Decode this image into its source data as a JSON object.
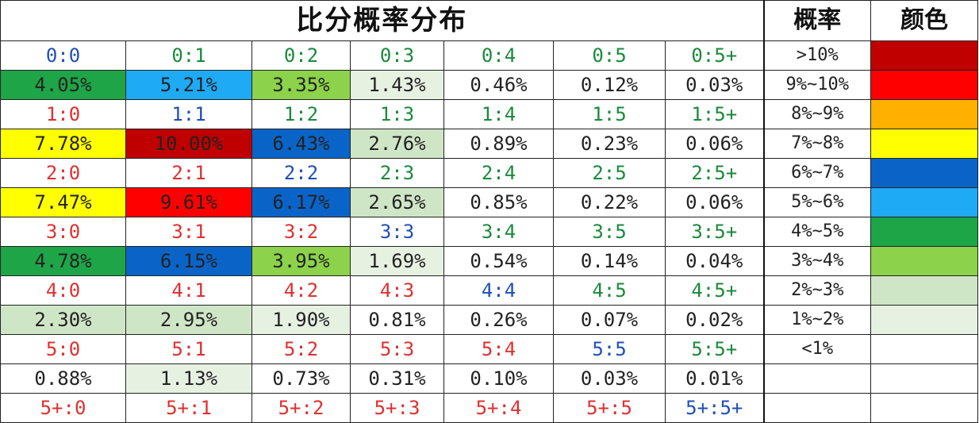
{
  "chart_data": {
    "type": "table",
    "title": "比分概率分布",
    "legend_headers": {
      "prob": "概率",
      "color": "颜色"
    },
    "rows": [
      {
        "scores": [
          "0:0",
          "0:1",
          "0:2",
          "0:3",
          "0:4",
          "0:5",
          "0:5+"
        ],
        "score_colors": [
          "blue",
          "green",
          "green",
          "green",
          "green",
          "green",
          "green"
        ],
        "values": [
          "4.05%",
          "5.21%",
          "3.35%",
          "1.43%",
          "0.46%",
          "0.12%",
          "0.03%"
        ]
      },
      {
        "scores": [
          "1:0",
          "1:1",
          "1:2",
          "1:3",
          "1:4",
          "1:5",
          "1:5+"
        ],
        "score_colors": [
          "red",
          "blue",
          "green",
          "green",
          "green",
          "green",
          "green"
        ],
        "values": [
          "7.78%",
          "10.00%",
          "6.43%",
          "2.76%",
          "0.89%",
          "0.23%",
          "0.06%"
        ]
      },
      {
        "scores": [
          "2:0",
          "2:1",
          "2:2",
          "2:3",
          "2:4",
          "2:5",
          "2:5+"
        ],
        "score_colors": [
          "red",
          "red",
          "blue",
          "green",
          "green",
          "green",
          "green"
        ],
        "values": [
          "7.47%",
          "9.61%",
          "6.17%",
          "2.65%",
          "0.85%",
          "0.22%",
          "0.06%"
        ]
      },
      {
        "scores": [
          "3:0",
          "3:1",
          "3:2",
          "3:3",
          "3:4",
          "3:5",
          "3:5+"
        ],
        "score_colors": [
          "red",
          "red",
          "red",
          "blue",
          "green",
          "green",
          "green"
        ],
        "values": [
          "4.78%",
          "6.15%",
          "3.95%",
          "1.69%",
          "0.54%",
          "0.14%",
          "0.04%"
        ]
      },
      {
        "scores": [
          "4:0",
          "4:1",
          "4:2",
          "4:3",
          "4:4",
          "4:5",
          "4:5+"
        ],
        "score_colors": [
          "red",
          "red",
          "red",
          "red",
          "blue",
          "green",
          "green"
        ],
        "values": [
          "2.30%",
          "2.95%",
          "1.90%",
          "0.81%",
          "0.26%",
          "0.07%",
          "0.02%"
        ]
      },
      {
        "scores": [
          "5:0",
          "5:1",
          "5:2",
          "5:3",
          "5:4",
          "5:5",
          "5:5+"
        ],
        "score_colors": [
          "red",
          "red",
          "red",
          "red",
          "red",
          "blue",
          "green"
        ],
        "values": [
          "0.88%",
          "1.13%",
          "0.73%",
          "0.31%",
          "0.10%",
          "0.03%",
          "0.01%"
        ]
      },
      {
        "scores": [
          "5+:0",
          "5+:1",
          "5+:2",
          "5+:3",
          "5+:4",
          "5+:5",
          "5+:5+"
        ],
        "score_colors": [
          "red",
          "red",
          "red",
          "red",
          "red",
          "red",
          "blue"
        ]
      }
    ],
    "legend": [
      {
        "label": ">10%",
        "color": "#c00000",
        "min": 10,
        "max": 100
      },
      {
        "label": "9%~10%",
        "color": "#ff0000",
        "min": 9,
        "max": 10
      },
      {
        "label": "8%~9%",
        "color": "#ffb000",
        "min": 8,
        "max": 9
      },
      {
        "label": "7%~8%",
        "color": "#ffff00",
        "min": 7,
        "max": 8
      },
      {
        "label": "6%~7%",
        "color": "#0a64c8",
        "min": 6,
        "max": 7
      },
      {
        "label": "5%~6%",
        "color": "#1eaaf5",
        "min": 5,
        "max": 6
      },
      {
        "label": "4%~5%",
        "color": "#1ea548",
        "min": 4,
        "max": 5
      },
      {
        "label": "3%~4%",
        "color": "#8cd24a",
        "min": 3,
        "max": 4
      },
      {
        "label": "2%~3%",
        "color": "#cfe6c6",
        "min": 2,
        "max": 3
      },
      {
        "label": "1%~2%",
        "color": "#e6f1e2",
        "min": 1,
        "max": 2
      },
      {
        "label": "<1%",
        "color": "#ffffff",
        "min": 0,
        "max": 1
      }
    ],
    "score_color_map": {
      "blue": "#1f4fb8",
      "green": "#1a8a3a",
      "red": "#e03030"
    }
  }
}
